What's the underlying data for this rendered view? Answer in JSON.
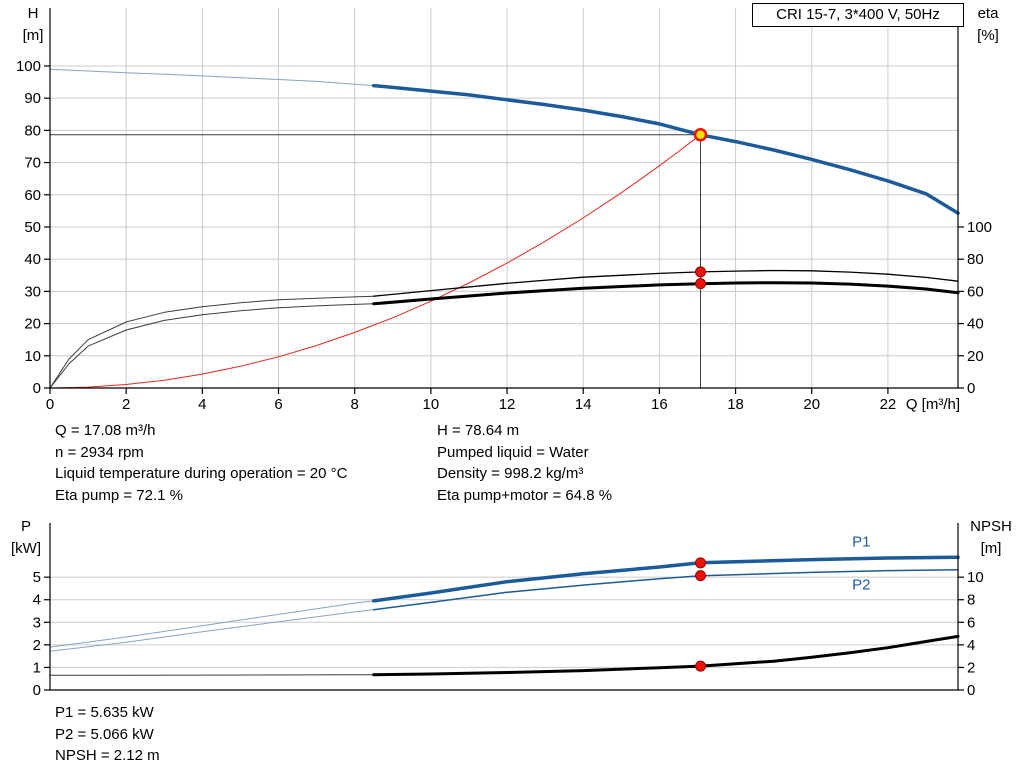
{
  "title_box": {
    "label": "CRI 15-7, 3*400 V, 50Hz"
  },
  "colors": {
    "blue": "#1d5a9b",
    "blue_light": "#87a3c6",
    "red": "#e0281e",
    "black": "#000000",
    "black_light": "#3c3c3c",
    "grid": "#cccccc",
    "axis": "#000000",
    "duty_yellow": "#ffdf00",
    "dot_red": "#e81309",
    "crosshair": "#3a3a3a"
  },
  "top_info": {
    "left": [
      "Q = 17.08 m³/h",
      "n = 2934 rpm",
      "Liquid temperature during operation = 20 °C",
      "Eta pump = 72.1 %"
    ],
    "right": [
      "H = 78.64 m",
      "Pumped liquid = Water",
      "Density = 998.2 kg/m³",
      "Eta pump+motor = 64.8 %"
    ]
  },
  "bottom_info": {
    "lines": [
      "P1 = 5.635 kW",
      "P2 = 5.066 kW",
      "NPSH = 2.12 m"
    ]
  },
  "chart_data": [
    {
      "type": "line",
      "title": "CRI 15-7, 3*400 V, 50Hz",
      "xlabel": "Q [m³/h]",
      "ylabel_left": [
        "H",
        "[m]"
      ],
      "ylabel_right": [
        "eta",
        "[%]"
      ],
      "xlim": [
        0,
        23.84
      ],
      "x_ticks": [
        0,
        2,
        4,
        6,
        8,
        10,
        12,
        14,
        16,
        18,
        20,
        22
      ],
      "show_x_tick_labels": true,
      "ylim_left": [
        0,
        118
      ],
      "y_ticks_left": [
        0,
        10,
        20,
        30,
        40,
        50,
        60,
        70,
        80,
        90,
        100
      ],
      "ylim_right": [
        0,
        236
      ],
      "y_ticks_right": [
        0,
        20,
        40,
        60,
        80,
        100
      ],
      "grid_x": true,
      "grid_y": true,
      "duty_point": {
        "q": 17.08,
        "h": 78.64
      },
      "markers": [
        {
          "x": 17.08,
          "y": 78.64,
          "axis": "left",
          "style": "duty"
        },
        {
          "x": 17.08,
          "y": 72.1,
          "axis": "right",
          "style": "dot"
        },
        {
          "x": 17.08,
          "y": 64.8,
          "axis": "right",
          "style": "dot"
        }
      ],
      "annotations": [],
      "series": [
        {
          "name": "system-curve",
          "color": "red",
          "width": 1,
          "axis": "left",
          "points": [
            [
              0,
              0
            ],
            [
              1,
              0.27
            ],
            [
              2,
              1.08
            ],
            [
              3,
              2.43
            ],
            [
              4,
              4.31
            ],
            [
              5,
              6.74
            ],
            [
              6,
              9.7
            ],
            [
              7,
              13.2
            ],
            [
              8,
              17.25
            ],
            [
              9,
              21.8
            ],
            [
              10,
              26.95
            ],
            [
              11,
              32.6
            ],
            [
              12,
              38.8
            ],
            [
              13,
              45.55
            ],
            [
              14,
              52.8
            ],
            [
              15,
              60.6
            ],
            [
              16,
              69.0
            ],
            [
              16.5,
              73.4
            ],
            [
              17.08,
              78.64
            ]
          ]
        },
        {
          "name": "qh-out-of-range",
          "color": "blue_light",
          "width": 1,
          "axis": "left",
          "points": [
            [
              0,
              99
            ],
            [
              1,
              98.45
            ],
            [
              2,
              97.9
            ],
            [
              3,
              97.4
            ],
            [
              4,
              96.9
            ],
            [
              5,
              96.35
            ],
            [
              6,
              95.8
            ],
            [
              7,
              95.2
            ],
            [
              8,
              94.35
            ],
            [
              8.5,
              93.9
            ]
          ]
        },
        {
          "name": "qh-main",
          "color": "blue",
          "width": 3.5,
          "axis": "left",
          "points": [
            [
              8.5,
              93.9
            ],
            [
              10,
              92.2
            ],
            [
              11,
              91
            ],
            [
              12,
              89.5
            ],
            [
              13,
              88
            ],
            [
              14,
              86.3
            ],
            [
              15,
              84.3
            ],
            [
              16,
              82
            ],
            [
              17.08,
              78.64
            ],
            [
              18,
              76.5
            ],
            [
              19,
              73.9
            ],
            [
              20,
              71
            ],
            [
              21,
              67.8
            ],
            [
              22,
              64.3
            ],
            [
              23,
              60.3
            ],
            [
              23.84,
              54.3
            ]
          ]
        },
        {
          "name": "eta-pump-out-of-range",
          "color": "black_light",
          "width": 1,
          "axis": "right",
          "points": [
            [
              0,
              0
            ],
            [
              0.5,
              18
            ],
            [
              1,
              30
            ],
            [
              2,
              41
            ],
            [
              3,
              47
            ],
            [
              4,
              50.5
            ],
            [
              5,
              53
            ],
            [
              6,
              54.8
            ],
            [
              7,
              55.8
            ],
            [
              8,
              56.6
            ],
            [
              8.5,
              57
            ]
          ]
        },
        {
          "name": "eta-pump",
          "color": "black",
          "width": 1.3,
          "axis": "right",
          "points": [
            [
              8.5,
              57
            ],
            [
              10,
              60.5
            ],
            [
              12,
              65
            ],
            [
              14,
              68.8
            ],
            [
              16,
              71.2
            ],
            [
              17.08,
              72.1
            ],
            [
              18,
              72.6
            ],
            [
              19,
              73
            ],
            [
              20,
              72.8
            ],
            [
              21,
              72
            ],
            [
              22,
              70.7
            ],
            [
              23,
              68.7
            ],
            [
              23.84,
              66.3
            ]
          ]
        },
        {
          "name": "eta-pump-motor-out-of-range",
          "color": "black_light",
          "width": 1,
          "axis": "right",
          "points": [
            [
              0,
              0
            ],
            [
              0.5,
              15
            ],
            [
              1,
              26
            ],
            [
              2,
              36
            ],
            [
              3,
              42
            ],
            [
              4,
              45.5
            ],
            [
              5,
              48
            ],
            [
              6,
              49.8
            ],
            [
              7,
              51
            ],
            [
              8,
              51.9
            ],
            [
              8.5,
              52.3
            ]
          ]
        },
        {
          "name": "eta-pump-motor",
          "color": "black",
          "width": 3,
          "axis": "right",
          "points": [
            [
              8.5,
              52.3
            ],
            [
              10,
              55.3
            ],
            [
              12,
              59
            ],
            [
              14,
              62
            ],
            [
              16,
              64
            ],
            [
              17.08,
              64.8
            ],
            [
              18,
              65.2
            ],
            [
              19,
              65.4
            ],
            [
              20,
              65.2
            ],
            [
              21,
              64.5
            ],
            [
              22,
              63.3
            ],
            [
              23,
              61.5
            ],
            [
              23.84,
              59.2
            ]
          ]
        }
      ]
    },
    {
      "type": "line",
      "xlabel": "",
      "ylabel_left": [
        "P",
        "[kW]"
      ],
      "ylabel_right": [
        "NPSH",
        "[m]"
      ],
      "xlim": [
        0,
        23.84
      ],
      "x_ticks": [],
      "show_x_tick_labels": false,
      "ylim_left": [
        0,
        7.4
      ],
      "y_ticks_left": [
        0,
        1,
        2,
        3,
        4,
        5
      ],
      "ylim_right": [
        0,
        14.8
      ],
      "y_ticks_right": [
        0,
        2,
        4,
        6,
        8,
        10
      ],
      "grid_x": false,
      "grid_y": true,
      "markers": [
        {
          "x": 17.08,
          "y": 5.635,
          "axis": "left",
          "style": "dot"
        },
        {
          "x": 17.08,
          "y": 5.066,
          "axis": "left",
          "style": "dot"
        },
        {
          "x": 17.08,
          "y": 2.12,
          "axis": "right",
          "style": "dot"
        }
      ],
      "annotations": [
        {
          "x": 21.3,
          "y": 6.35,
          "text": "P1",
          "color": "blue"
        },
        {
          "x": 21.3,
          "y": 4.45,
          "text": "P2",
          "color": "blue"
        }
      ],
      "series": [
        {
          "name": "p1-out-of-range",
          "color": "blue_light",
          "width": 1,
          "axis": "left",
          "points": [
            [
              0,
              1.9
            ],
            [
              2,
              2.35
            ],
            [
              4,
              2.85
            ],
            [
              6,
              3.35
            ],
            [
              8,
              3.85
            ],
            [
              8.5,
              3.95
            ]
          ]
        },
        {
          "name": "p1",
          "color": "blue",
          "width": 3.5,
          "axis": "left",
          "points": [
            [
              8.5,
              3.95
            ],
            [
              10,
              4.3
            ],
            [
              12,
              4.8
            ],
            [
              14,
              5.15
            ],
            [
              16,
              5.45
            ],
            [
              17.08,
              5.635
            ],
            [
              18,
              5.68
            ],
            [
              20,
              5.78
            ],
            [
              22,
              5.85
            ],
            [
              23.84,
              5.88
            ]
          ]
        },
        {
          "name": "p2-out-of-range",
          "color": "blue_light",
          "width": 1,
          "axis": "left",
          "points": [
            [
              0,
              1.72
            ],
            [
              2,
              2.12
            ],
            [
              4,
              2.58
            ],
            [
              6,
              3.02
            ],
            [
              8,
              3.46
            ],
            [
              8.5,
              3.56
            ]
          ]
        },
        {
          "name": "p2",
          "color": "blue",
          "width": 1.5,
          "axis": "left",
          "points": [
            [
              8.5,
              3.56
            ],
            [
              10,
              3.88
            ],
            [
              12,
              4.33
            ],
            [
              14,
              4.65
            ],
            [
              16,
              4.93
            ],
            [
              17.08,
              5.066
            ],
            [
              18,
              5.11
            ],
            [
              20,
              5.21
            ],
            [
              22,
              5.29
            ],
            [
              23.84,
              5.33
            ]
          ]
        },
        {
          "name": "npsh-out-of-range",
          "color": "black_light",
          "width": 1,
          "axis": "right",
          "points": [
            [
              0,
              1.3
            ],
            [
              4,
              1.32
            ],
            [
              8,
              1.35
            ],
            [
              8.5,
              1.36
            ]
          ]
        },
        {
          "name": "npsh",
          "color": "black",
          "width": 3,
          "axis": "right",
          "points": [
            [
              8.5,
              1.36
            ],
            [
              10,
              1.42
            ],
            [
              12,
              1.55
            ],
            [
              14,
              1.72
            ],
            [
              16,
              1.98
            ],
            [
              17.08,
              2.12
            ],
            [
              18,
              2.32
            ],
            [
              19,
              2.55
            ],
            [
              20,
              2.9
            ],
            [
              21,
              3.3
            ],
            [
              22,
              3.75
            ],
            [
              23,
              4.3
            ],
            [
              23.84,
              4.75
            ]
          ]
        }
      ]
    }
  ]
}
